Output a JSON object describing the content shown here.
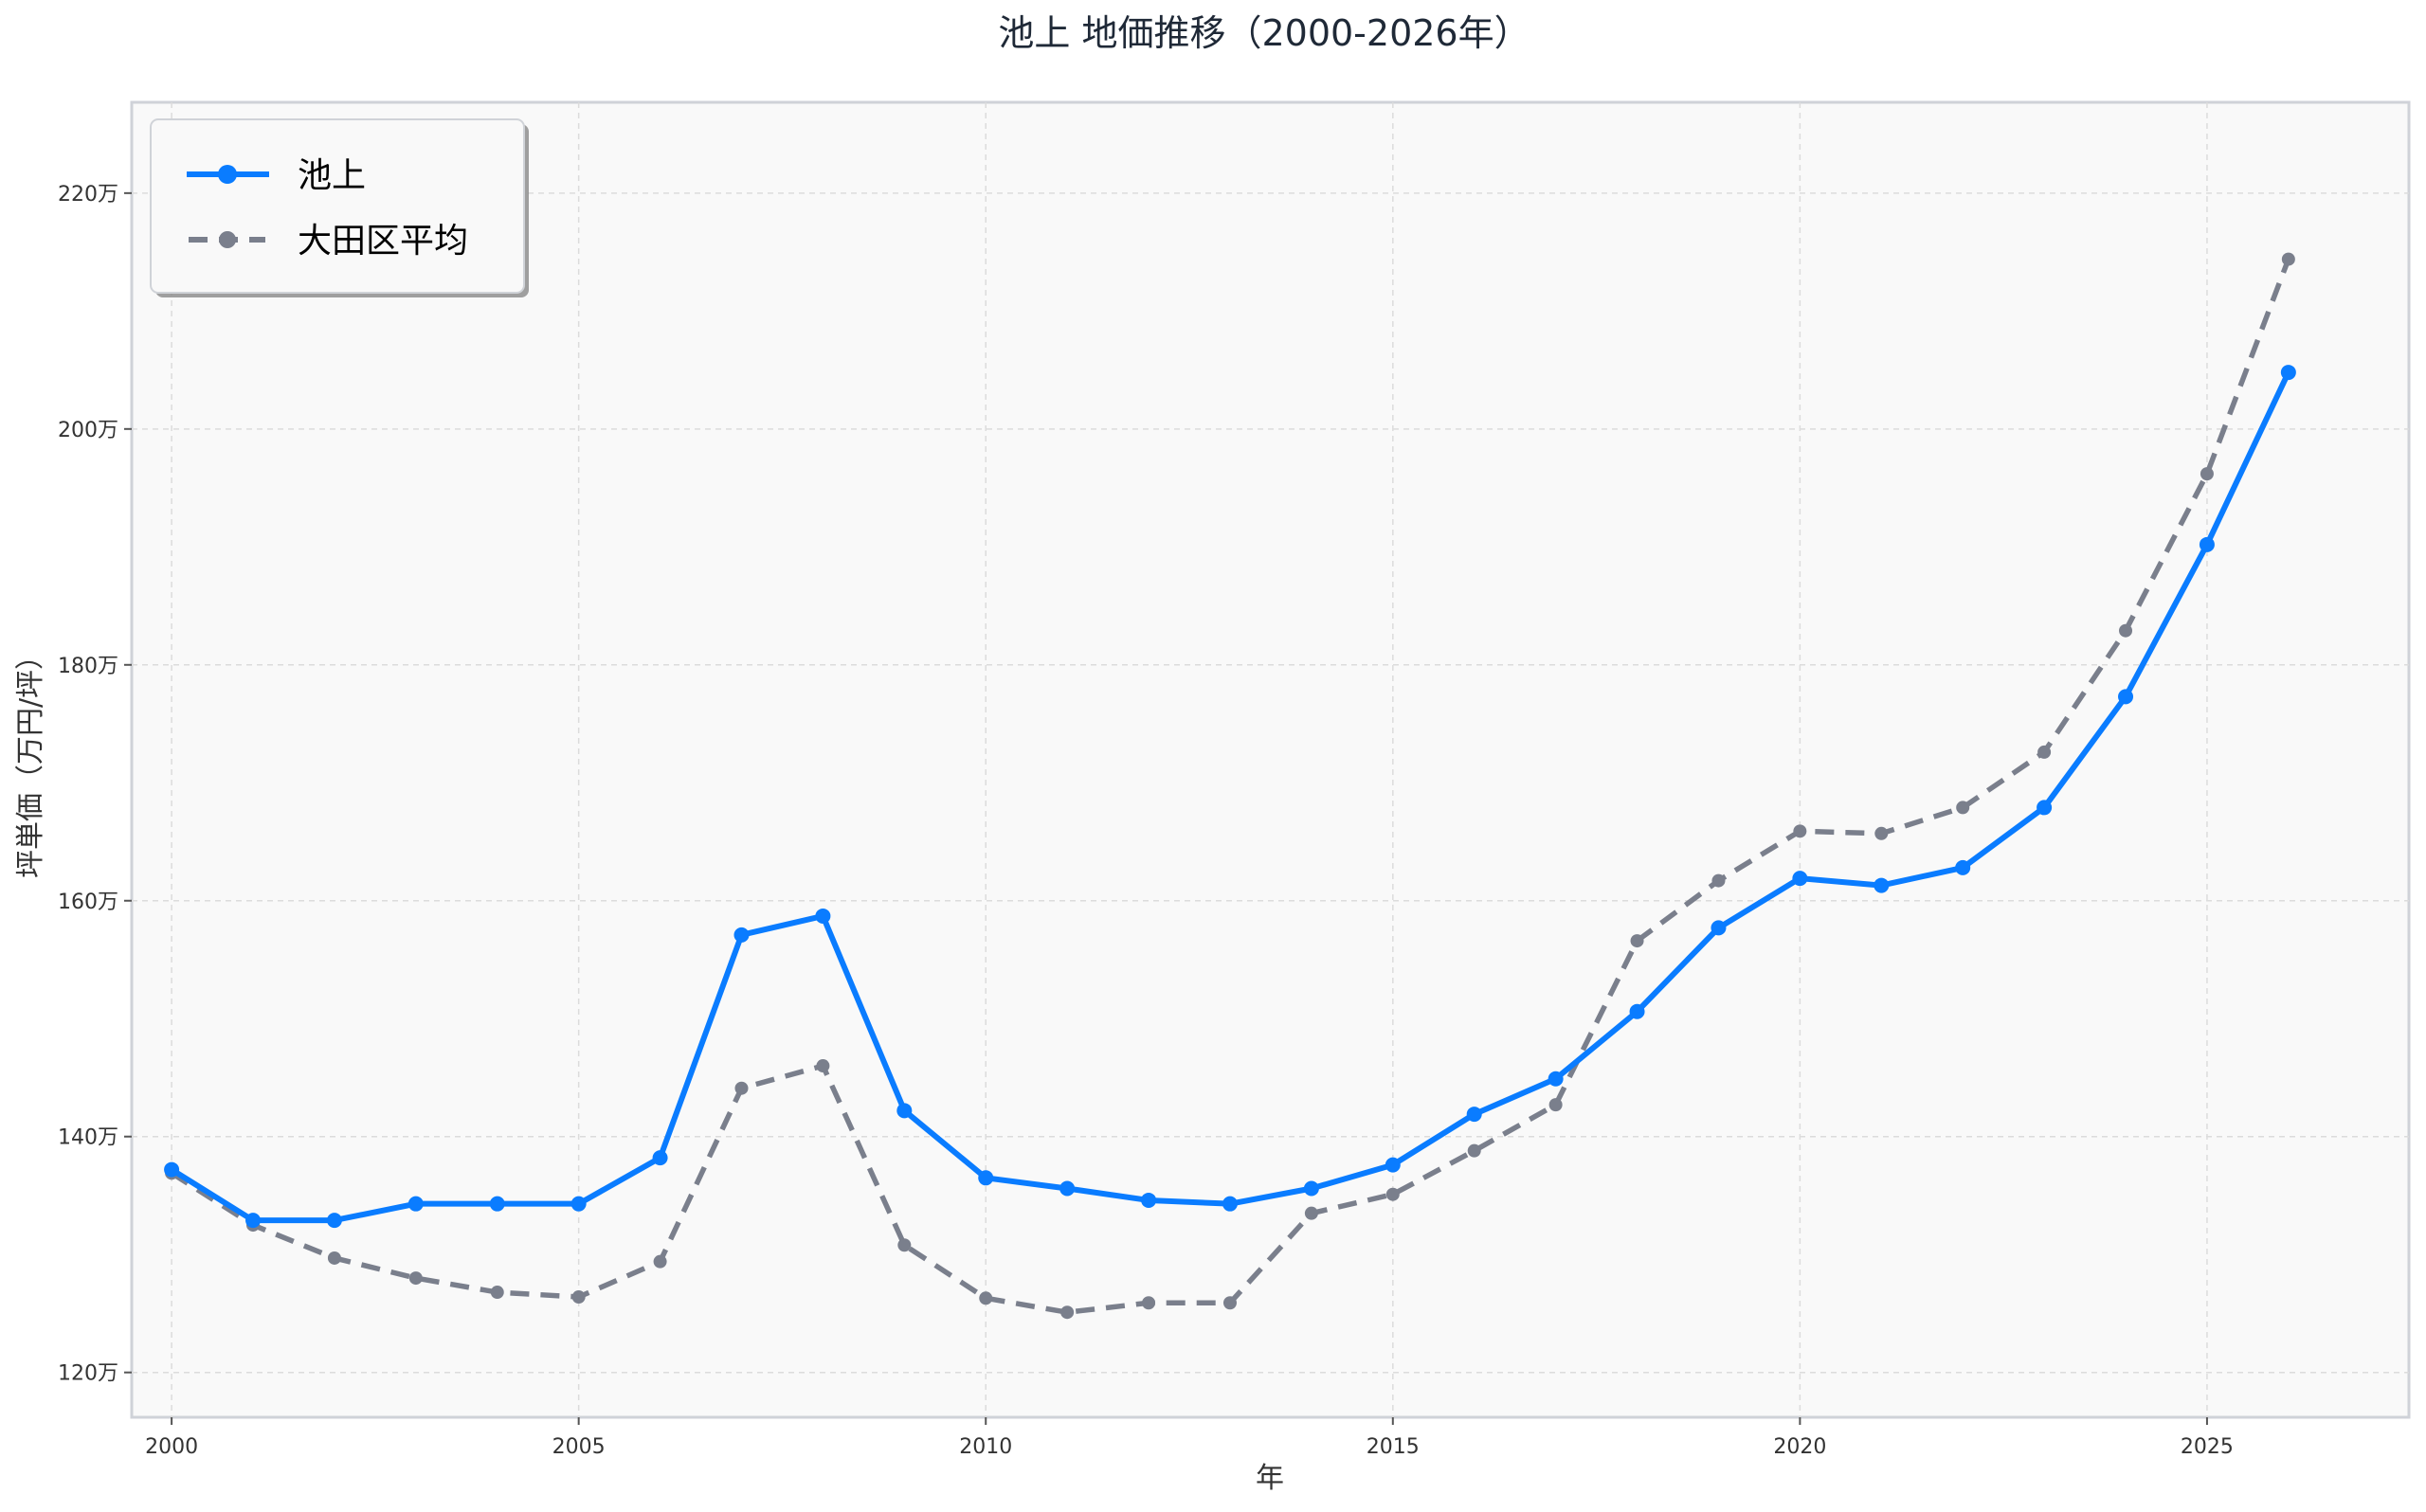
{
  "chart_data": {
    "type": "line",
    "title": "池上 地価推移（2000-2026年）",
    "xlabel": "年",
    "ylabel": "坪単価（万円/坪）",
    "x": [
      2000,
      2001,
      2002,
      2003,
      2004,
      2005,
      2006,
      2007,
      2008,
      2009,
      2010,
      2011,
      2012,
      2013,
      2014,
      2015,
      2016,
      2017,
      2018,
      2019,
      2020,
      2021,
      2022,
      2023,
      2024,
      2025,
      2026
    ],
    "series": [
      {
        "name": "池上",
        "color": "#0a7cff",
        "style": "solid",
        "values": [
          137.2,
          132.9,
          132.9,
          134.3,
          134.3,
          134.3,
          138.2,
          157.1,
          158.7,
          142.2,
          136.5,
          135.6,
          134.6,
          134.3,
          135.6,
          137.6,
          141.9,
          144.9,
          150.6,
          157.7,
          161.9,
          161.3,
          162.8,
          167.9,
          177.3,
          190.2,
          204.8
        ]
      },
      {
        "name": "大田区平均",
        "color": "#7a7f8c",
        "style": "dashed",
        "values": [
          136.9,
          132.5,
          129.7,
          128.0,
          126.8,
          126.4,
          129.4,
          144.1,
          146.0,
          130.8,
          126.3,
          125.1,
          125.9,
          125.9,
          133.5,
          135.1,
          138.8,
          142.7,
          156.6,
          161.7,
          165.9,
          165.7,
          167.9,
          172.6,
          182.9,
          196.2,
          214.4
        ]
      }
    ],
    "xticks": [
      2000,
      2005,
      2010,
      2015,
      2020,
      2025
    ],
    "xtick_labels": [
      "2000",
      "2005",
      "2010",
      "2015",
      "2020",
      "2025"
    ],
    "yticks": [
      120,
      140,
      160,
      180,
      200,
      220
    ],
    "ytick_labels": [
      "120万",
      "140万",
      "160万",
      "180万",
      "200万",
      "220万"
    ],
    "xlim": [
      1999.51,
      2027.48
    ],
    "ylim": [
      116.2,
      227.7
    ],
    "grid": true,
    "legend": "top-left"
  }
}
